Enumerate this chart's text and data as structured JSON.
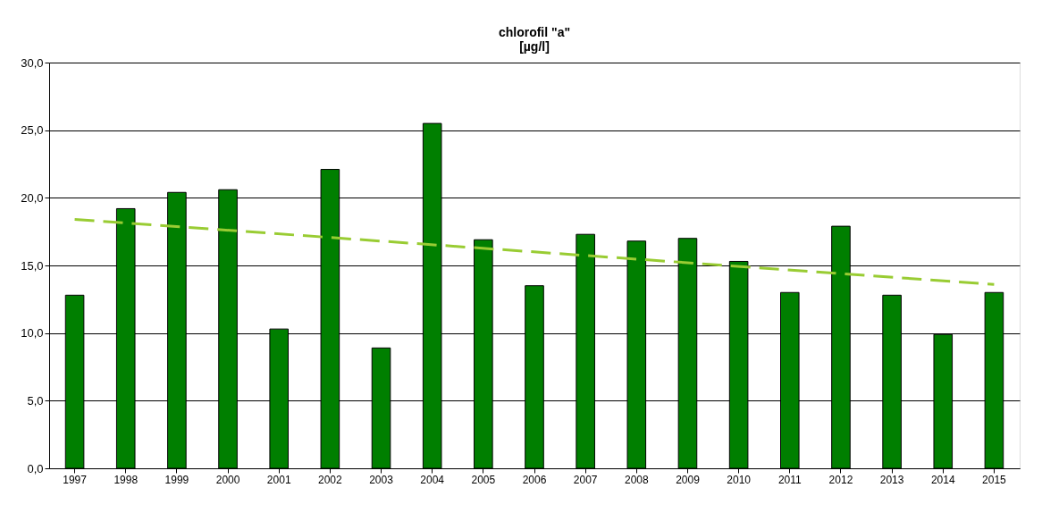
{
  "chart_data": {
    "type": "bar",
    "title": "chlorofil  \"a\"",
    "subtitle": "[µg/l]",
    "categories": [
      "1997",
      "1998",
      "1999",
      "2000",
      "2001",
      "2002",
      "2003",
      "2004",
      "2005",
      "2006",
      "2007",
      "2008",
      "2009",
      "2010",
      "2011",
      "2012",
      "2013",
      "2014",
      "2015"
    ],
    "series": [
      {
        "color": "#007f00",
        "values": [
          12.8,
          19.2,
          20.4,
          20.6,
          10.3,
          22.1,
          8.9,
          25.5,
          16.9,
          13.5,
          17.3,
          16.8,
          17.0,
          15.3,
          13.0,
          17.9,
          12.8,
          9.9,
          13.0
        ]
      },
      {
        "type": "line",
        "color": "#99cc33",
        "line_style": "dashed",
        "values": [
          18.4,
          null,
          null,
          null,
          null,
          null,
          null,
          null,
          null,
          null,
          null,
          null,
          null,
          null,
          null,
          null,
          null,
          null,
          13.6
        ]
      }
    ],
    "ylim": [
      0,
      30
    ],
    "yticks": [
      {
        "value": 0,
        "label": "0,0"
      },
      {
        "value": 5,
        "label": "5,0"
      },
      {
        "value": 10,
        "label": "10,0"
      },
      {
        "value": 15,
        "label": "15,0"
      },
      {
        "value": 20,
        "label": "20,0"
      },
      {
        "value": 25,
        "label": "25,0"
      },
      {
        "value": 30,
        "label": "30,0"
      }
    ],
    "grid": "y"
  }
}
